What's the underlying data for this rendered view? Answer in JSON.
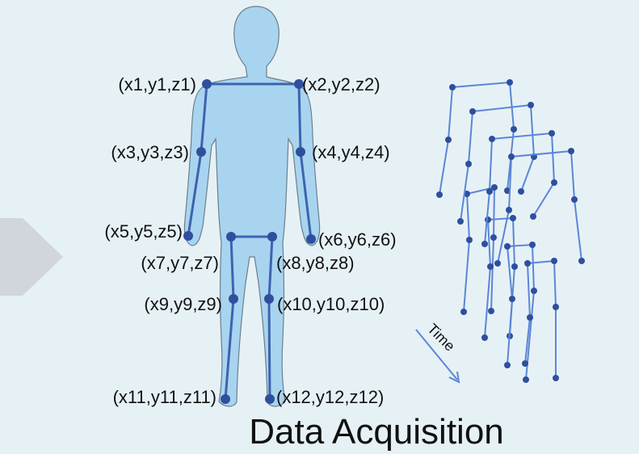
{
  "title": "Data Acquisition",
  "time_label": "Time",
  "joints": [
    {
      "label": "(x1,y1,z1)"
    },
    {
      "label": "(x2,y2,z2)"
    },
    {
      "label": "(x3,y3,z3)"
    },
    {
      "label": "(x4,y4,z4)"
    },
    {
      "label": "(x5,y5,z5)"
    },
    {
      "label": "(x6,y6,z6)"
    },
    {
      "label": "(x7,y7,z7)"
    },
    {
      "label": "(x8,y8,z8)"
    },
    {
      "label": "(x9,y9,z9)"
    },
    {
      "label": "(x10,y10,z10)"
    },
    {
      "label": "(x11,y11,z11)"
    },
    {
      "label": "(x12,y12,z12)"
    }
  ],
  "colors": {
    "background": "#e6f1f6",
    "body_fill": "#a9d4ef",
    "skeleton": "#3d63b0",
    "joint": "#2f4f9e",
    "sequence": "#5b86d6"
  }
}
